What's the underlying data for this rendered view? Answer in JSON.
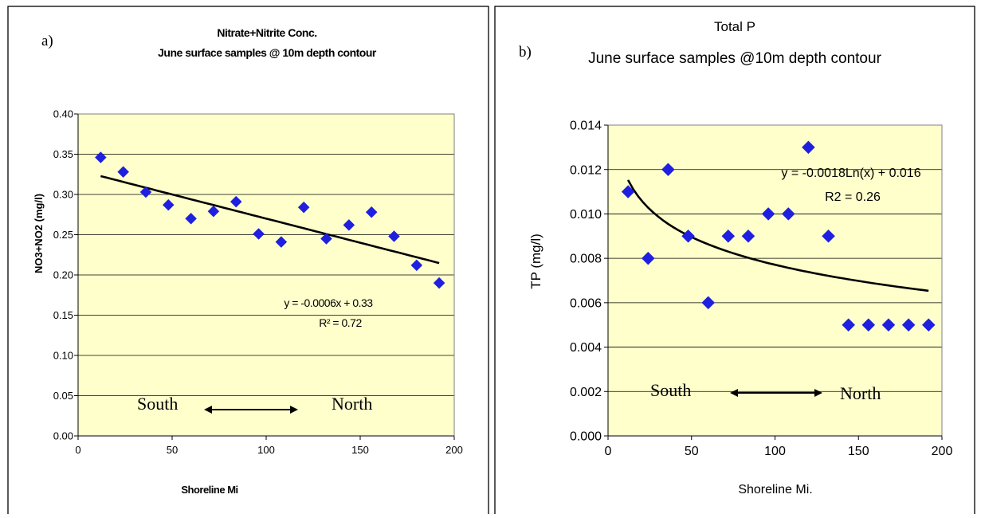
{
  "colors": {
    "plot_bg": "#ffffcc",
    "marker": "#1f1fe0",
    "trend": "#000000",
    "grid": "#000000",
    "frame": "#000000"
  },
  "chart_data": [
    {
      "type": "scatter",
      "panel_label": "a)",
      "title": [
        "Nitrate+Nitrite Conc.",
        "June surface samples @ 10m depth contour"
      ],
      "xlabel": "Shoreline Mi",
      "ylabel": "NO3+NO2 (mg/l)",
      "xlim": [
        0,
        200
      ],
      "ylim": [
        0,
        0.4
      ],
      "xticks": [
        "0",
        "50",
        "100",
        "150",
        "200"
      ],
      "yticks": [
        "0.00",
        "0.05",
        "0.10",
        "0.15",
        "0.20",
        "0.25",
        "0.30",
        "0.35",
        "0.40"
      ],
      "grid": "horizontal",
      "marker": "diamond",
      "x": [
        12,
        24,
        36,
        48,
        60,
        72,
        84,
        96,
        108,
        120,
        132,
        144,
        156,
        168,
        180,
        192
      ],
      "y": [
        0.346,
        0.328,
        0.303,
        0.287,
        0.27,
        0.279,
        0.291,
        0.251,
        0.241,
        0.284,
        0.245,
        0.262,
        0.278,
        0.248,
        0.212,
        0.19
      ],
      "trendline": {
        "kind": "linear",
        "slope": -0.0006,
        "intercept": 0.33,
        "x_range": [
          12,
          192
        ]
      },
      "equation": "y = -0.0006x + 0.33",
      "r2": "R² = 0.72",
      "direction": {
        "left": "South",
        "right": "North"
      }
    },
    {
      "type": "scatter",
      "panel_label": "b)",
      "title": [
        "Total P",
        "June surface samples @10m depth contour"
      ],
      "xlabel": "Shoreline Mi.",
      "ylabel": "TP (mg/l)",
      "xlim": [
        0,
        200
      ],
      "ylim": [
        0,
        0.014
      ],
      "xticks": [
        "0",
        "50",
        "100",
        "150",
        "200"
      ],
      "yticks": [
        "0.000",
        "0.002",
        "0.004",
        "0.006",
        "0.008",
        "0.010",
        "0.012",
        "0.014"
      ],
      "grid": "horizontal",
      "marker": "diamond",
      "x": [
        12,
        24,
        36,
        48,
        60,
        72,
        84,
        96,
        108,
        120,
        132,
        144,
        156,
        168,
        180,
        192
      ],
      "y": [
        0.011,
        0.008,
        0.012,
        0.009,
        0.006,
        0.009,
        0.009,
        0.01,
        0.01,
        0.013,
        0.009,
        0.005,
        0.005,
        0.005,
        0.005,
        0.005
      ],
      "trendline": {
        "kind": "log",
        "a": -0.0018,
        "b": 0.016,
        "x_range": [
          12,
          192
        ]
      },
      "equation": "y = -0.0018Ln(x) + 0.016",
      "r2": "R2 = 0.26",
      "direction": {
        "left": "South",
        "right": "North"
      }
    }
  ]
}
